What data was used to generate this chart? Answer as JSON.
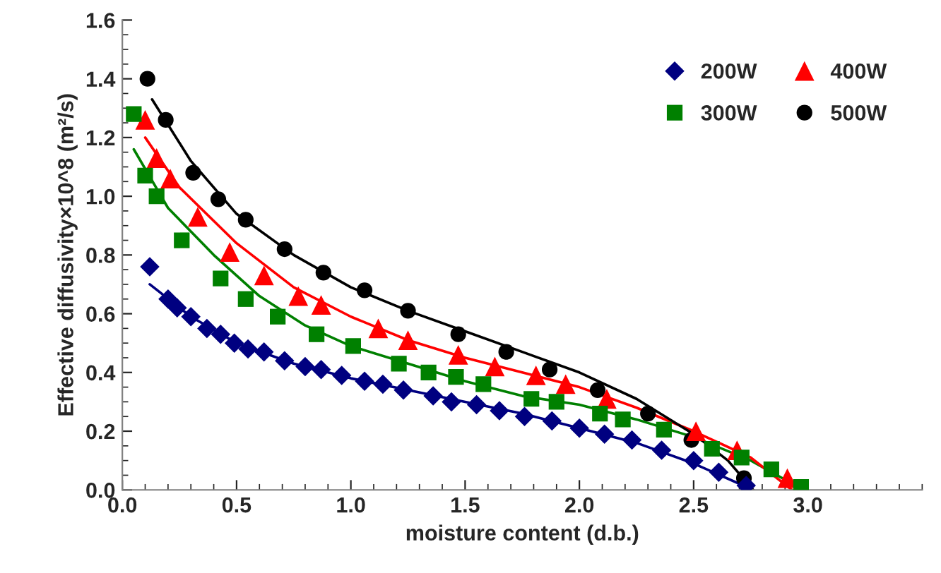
{
  "chart_data": {
    "type": "scatter",
    "xlabel": "moisture content (d.b.)",
    "ylabel": "Effective diffusivity×10^8 (m²/s)",
    "xlim": [
      0,
      3.5
    ],
    "ylim": [
      0,
      1.6
    ],
    "xticks": [
      {
        "value": 0,
        "label": "0.0"
      },
      {
        "value": 0.5,
        "label": "0.5"
      },
      {
        "value": 1,
        "label": "1.0"
      },
      {
        "value": 1.5,
        "label": "1.5"
      },
      {
        "value": 2,
        "label": "2.0"
      },
      {
        "value": 2.5,
        "label": "2.5"
      },
      {
        "value": 3,
        "label": "3.0"
      }
    ],
    "yticks": [
      {
        "value": 0,
        "label": "0.0"
      },
      {
        "value": 0.2,
        "label": "0.2"
      },
      {
        "value": 0.4,
        "label": "0.4"
      },
      {
        "value": 0.6,
        "label": "0.6"
      },
      {
        "value": 0.8,
        "label": "0.8"
      },
      {
        "value": 1,
        "label": "1.0"
      },
      {
        "value": 1.2,
        "label": "1.2"
      },
      {
        "value": 1.4,
        "label": "1.4"
      },
      {
        "value": 1.6,
        "label": "1.6"
      }
    ],
    "grid": false,
    "legend": "top right",
    "series": [
      {
        "name": "200W",
        "color": "#000080",
        "marker": "diamond",
        "x": [
          0.12,
          0.2,
          0.24,
          0.3,
          0.37,
          0.43,
          0.49,
          0.55,
          0.62,
          0.71,
          0.8,
          0.87,
          0.96,
          1.06,
          1.14,
          1.23,
          1.36,
          1.44,
          1.55,
          1.65,
          1.76,
          1.88,
          2.0,
          2.11,
          2.23,
          2.36,
          2.5,
          2.61,
          2.73
        ],
        "values": [
          0.76,
          0.65,
          0.62,
          0.59,
          0.55,
          0.53,
          0.5,
          0.48,
          0.47,
          0.44,
          0.42,
          0.41,
          0.39,
          0.37,
          0.36,
          0.34,
          0.32,
          0.3,
          0.29,
          0.27,
          0.25,
          0.235,
          0.21,
          0.19,
          0.17,
          0.135,
          0.1,
          0.06,
          0.015
        ]
      },
      {
        "name": "300W",
        "color": "#008000",
        "marker": "square",
        "x": [
          0.05,
          0.1,
          0.15,
          0.26,
          0.43,
          0.54,
          0.68,
          0.85,
          1.01,
          1.21,
          1.34,
          1.46,
          1.58,
          1.79,
          1.9,
          2.09,
          2.19,
          2.37,
          2.58,
          2.71,
          2.84,
          2.97
        ],
        "values": [
          1.28,
          1.07,
          1.0,
          0.85,
          0.72,
          0.65,
          0.59,
          0.53,
          0.49,
          0.43,
          0.4,
          0.385,
          0.36,
          0.31,
          0.3,
          0.26,
          0.24,
          0.205,
          0.14,
          0.11,
          0.07,
          0.01
        ]
      },
      {
        "name": "400W",
        "color": "#ff0000",
        "marker": "triangle",
        "x": [
          0.1,
          0.15,
          0.21,
          0.33,
          0.47,
          0.62,
          0.77,
          0.87,
          1.12,
          1.25,
          1.47,
          1.63,
          1.81,
          1.94,
          2.12,
          2.51,
          2.69,
          2.91
        ],
        "values": [
          1.26,
          1.13,
          1.06,
          0.93,
          0.81,
          0.73,
          0.66,
          0.63,
          0.55,
          0.51,
          0.46,
          0.42,
          0.39,
          0.36,
          0.31,
          0.2,
          0.135,
          0.04
        ]
      },
      {
        "name": "500W",
        "color": "#000000",
        "marker": "circle",
        "x": [
          0.11,
          0.19,
          0.31,
          0.42,
          0.54,
          0.71,
          0.88,
          1.06,
          1.25,
          1.47,
          1.68,
          1.87,
          2.08,
          2.3,
          2.49,
          2.72
        ],
        "values": [
          1.4,
          1.26,
          1.08,
          0.99,
          0.92,
          0.82,
          0.74,
          0.68,
          0.61,
          0.53,
          0.47,
          0.41,
          0.34,
          0.26,
          0.17,
          0.04
        ]
      },
      {
        "type": "line",
        "color": "#000080",
        "x": [
          0.12,
          0.3,
          0.5,
          0.75,
          1.0,
          1.25,
          1.5,
          1.75,
          2.0,
          2.25,
          2.5,
          2.76
        ],
        "values": [
          0.7,
          0.59,
          0.5,
          0.43,
          0.38,
          0.34,
          0.3,
          0.26,
          0.21,
          0.16,
          0.09,
          0.0
        ]
      },
      {
        "type": "line",
        "color": "#008000",
        "x": [
          0.05,
          0.2,
          0.4,
          0.6,
          0.8,
          1.0,
          1.25,
          1.5,
          1.75,
          2.0,
          2.25,
          2.5,
          2.75,
          2.98
        ],
        "values": [
          1.16,
          0.96,
          0.8,
          0.66,
          0.56,
          0.49,
          0.43,
          0.37,
          0.32,
          0.29,
          0.24,
          0.18,
          0.1,
          0.0
        ]
      },
      {
        "type": "line",
        "color": "#ff0000",
        "x": [
          0.1,
          0.25,
          0.5,
          0.75,
          1.0,
          1.25,
          1.5,
          1.75,
          2.0,
          2.25,
          2.5,
          2.75,
          2.93
        ],
        "values": [
          1.2,
          1.03,
          0.84,
          0.69,
          0.59,
          0.51,
          0.45,
          0.4,
          0.35,
          0.28,
          0.2,
          0.11,
          0.0
        ]
      },
      {
        "type": "line",
        "color": "#000000",
        "x": [
          0.13,
          0.3,
          0.5,
          0.75,
          1.0,
          1.25,
          1.5,
          1.75,
          2.0,
          2.25,
          2.5,
          2.65,
          2.76
        ],
        "values": [
          1.33,
          1.12,
          0.94,
          0.8,
          0.69,
          0.61,
          0.54,
          0.47,
          0.4,
          0.31,
          0.19,
          0.1,
          0.0
        ]
      }
    ]
  }
}
